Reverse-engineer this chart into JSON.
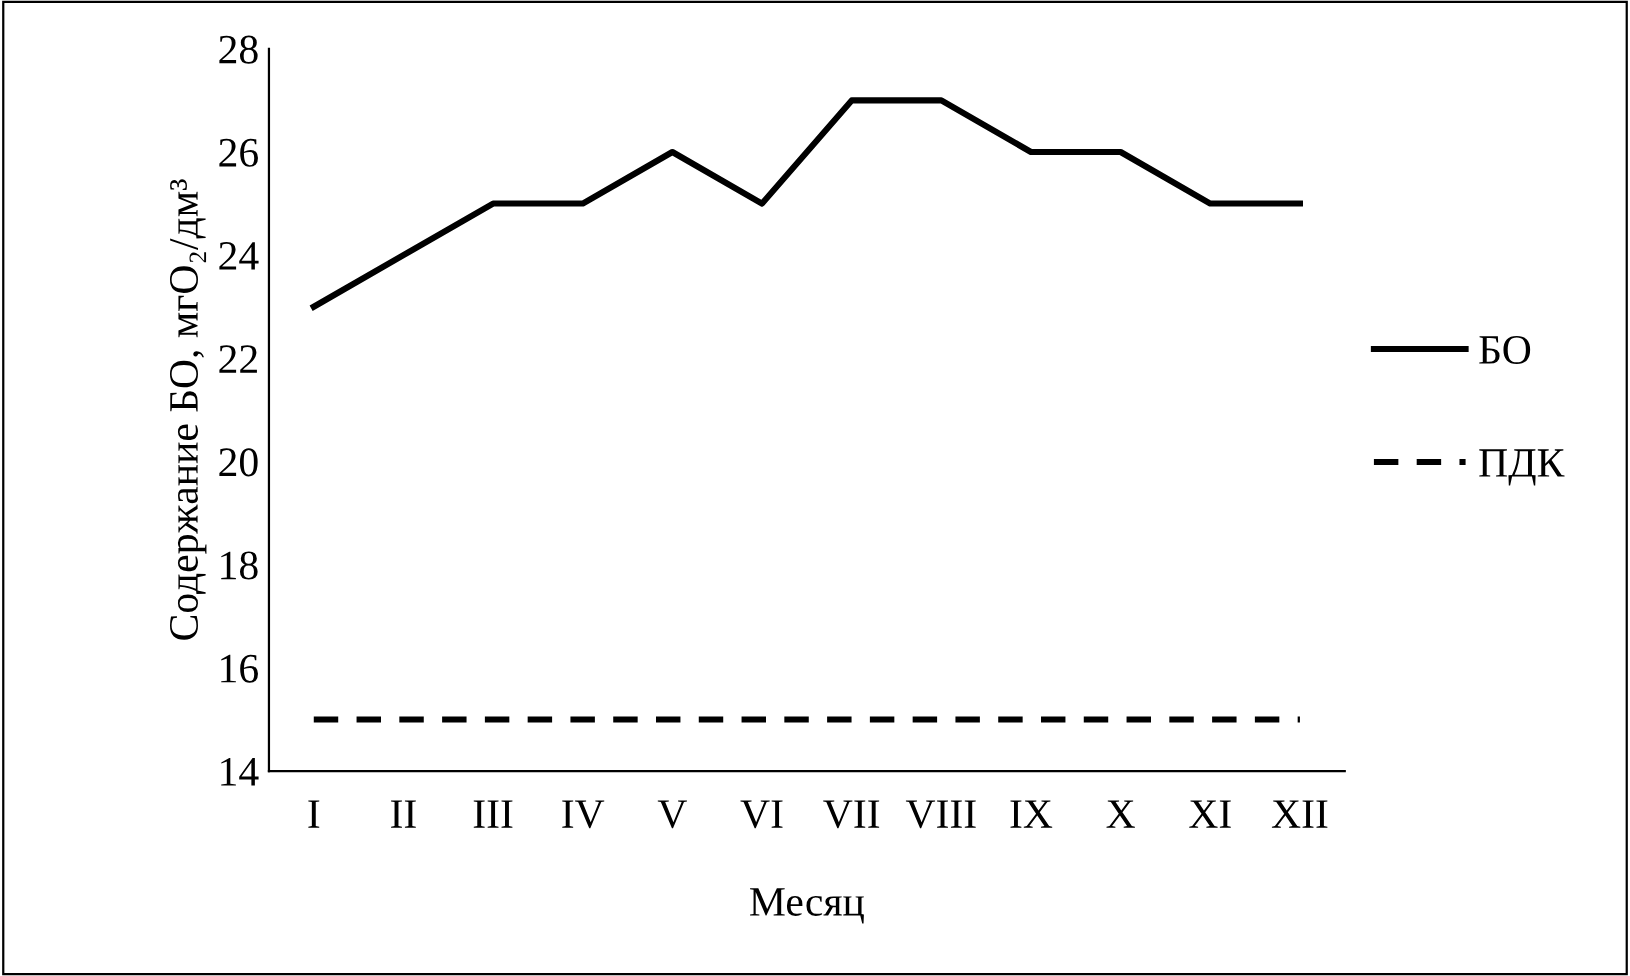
{
  "chart_data": {
    "type": "line",
    "categories": [
      "I",
      "II",
      "III",
      "IV",
      "V",
      "VI",
      "VII",
      "VIII",
      "IX",
      "X",
      "XI",
      "XII"
    ],
    "series": [
      {
        "name": "БО",
        "color": "#000000",
        "line_style": "solid",
        "values": [
          23,
          24,
          25,
          25,
          26,
          25,
          27,
          27,
          26,
          26,
          25,
          25
        ]
      },
      {
        "name": "ПДК",
        "color": "#000000",
        "line_style": "dashed",
        "values": [
          15,
          15,
          15,
          15,
          15,
          15,
          15,
          15,
          15,
          15,
          15,
          15
        ]
      }
    ],
    "xlabel": "Месяц",
    "ylabel": "Содержание БО, мгO₂/дм³",
    "ylim": [
      14,
      28
    ],
    "yticks": [
      14,
      16,
      18,
      20,
      22,
      24,
      26,
      28
    ],
    "grid": false,
    "legend": "right",
    "marker": "none"
  }
}
